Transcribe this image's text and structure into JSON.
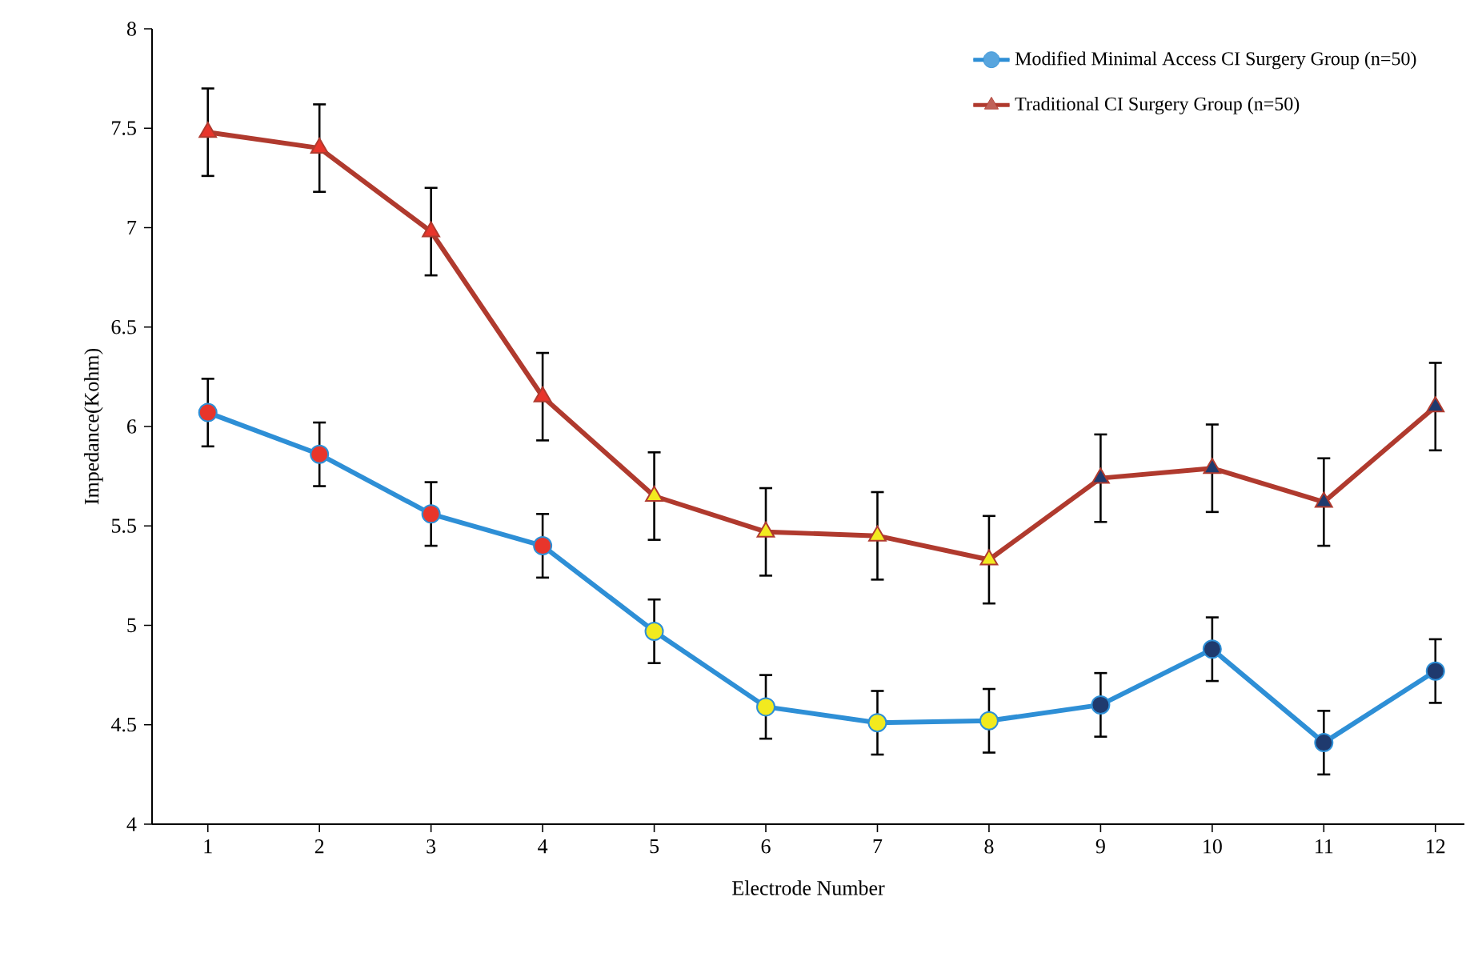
{
  "chart_data": {
    "type": "line",
    "xlabel": "Electrode Number",
    "ylabel": "Impedance(Kohm)",
    "categories": [
      "1",
      "2",
      "3",
      "4",
      "5",
      "6",
      "7",
      "8",
      "9",
      "10",
      "11",
      "12"
    ],
    "series": [
      {
        "name": "Modified Minimal Access CI Surgery Group (n=50)",
        "color": "#2e8fd6",
        "marker": "circle",
        "values": [
          6.07,
          5.86,
          5.56,
          5.4,
          4.97,
          4.59,
          4.51,
          4.52,
          4.6,
          4.88,
          4.41,
          4.77
        ],
        "errors": [
          0.17,
          0.16,
          0.16,
          0.16,
          0.16,
          0.16,
          0.16,
          0.16,
          0.16,
          0.16,
          0.16,
          0.16
        ],
        "colors": [
          "#e8352b",
          "#e8352b",
          "#e8352b",
          "#e8352b",
          "#f2ea1f",
          "#f2ea1f",
          "#f2ea1f",
          "#f2ea1f",
          "#1f3a6e",
          "#1f3a6e",
          "#1f3a6e",
          "#1f3a6e"
        ]
      },
      {
        "name": "Traditional CI Surgery Group (n=50)",
        "color": "#b03a2e",
        "marker": "triangle",
        "values": [
          7.48,
          7.4,
          6.98,
          6.15,
          5.65,
          5.47,
          5.45,
          5.33,
          5.74,
          5.79,
          5.62,
          6.1
        ],
        "errors": [
          0.22,
          0.22,
          0.22,
          0.22,
          0.22,
          0.22,
          0.22,
          0.22,
          0.22,
          0.22,
          0.22,
          0.22
        ],
        "colors": [
          "#e8352b",
          "#e8352b",
          "#e8352b",
          "#e8352b",
          "#f2ea1f",
          "#f2ea1f",
          "#f2ea1f",
          "#f2ea1f",
          "#1f3a6e",
          "#1f3a6e",
          "#1f3a6e",
          "#1f3a6e"
        ]
      }
    ],
    "ylim": [
      4,
      8
    ],
    "yticks": [
      4,
      4.5,
      5,
      5.5,
      6,
      6.5,
      7,
      7.5,
      8
    ],
    "legend": "top right",
    "grid": false,
    "line_style": "solid"
  }
}
